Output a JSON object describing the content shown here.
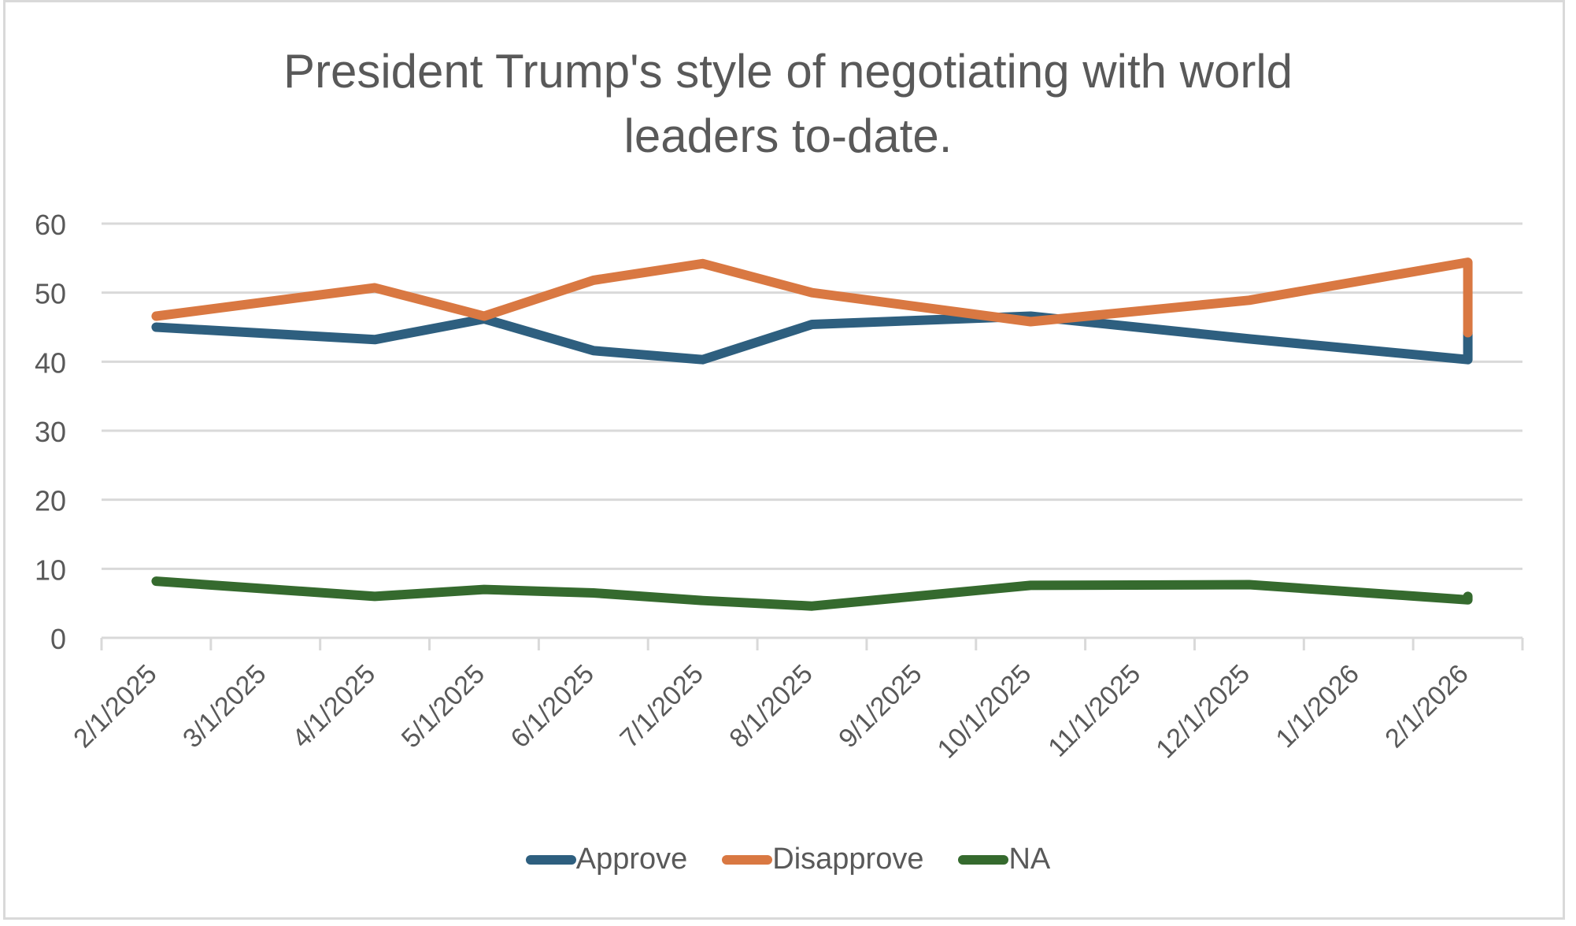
{
  "chart_data": {
    "type": "line",
    "title": "President Trump's style of negotiating with world leaders to-date.",
    "title_lines": [
      "President Trump's style of negotiating with world",
      "leaders to-date."
    ],
    "xlabel": "",
    "ylabel": "",
    "ylim": [
      0,
      60
    ],
    "yticks": [
      "0",
      "10",
      "20",
      "30",
      "40",
      "50",
      "60"
    ],
    "x_tick_labels": [
      "2/1/2025",
      "3/1/2025",
      "4/1/2025",
      "5/1/2025",
      "6/1/2025",
      "7/1/2025",
      "8/1/2025",
      "9/1/2025",
      "10/1/2025",
      "11/1/2025",
      "12/1/2025",
      "1/1/2026",
      "2/1/2026"
    ],
    "x_range_months": [
      0,
      13
    ],
    "grid": true,
    "legend_position": "bottom",
    "x": [
      0.5,
      2.5,
      3.5,
      4.5,
      5.5,
      6.5,
      8.5,
      10.5,
      12.5,
      12.5
    ],
    "series": [
      {
        "name": "Approve",
        "color": "#2e5f7f",
        "values": [
          45.0,
          43.2,
          46.2,
          41.6,
          40.3,
          45.4,
          46.6,
          43.3,
          40.3,
          44.2
        ]
      },
      {
        "name": "Disapprove",
        "color": "#d97842",
        "values": [
          46.6,
          50.7,
          46.6,
          51.8,
          54.2,
          50.0,
          45.8,
          48.9,
          54.4,
          44.2
        ]
      },
      {
        "name": "NA",
        "color": "#356a2e",
        "values": [
          8.2,
          6.0,
          7.0,
          6.5,
          5.4,
          4.6,
          7.6,
          7.7,
          5.5,
          6.0
        ]
      }
    ]
  },
  "colors": {
    "grid": "#d9d9d9",
    "text": "#595959"
  }
}
